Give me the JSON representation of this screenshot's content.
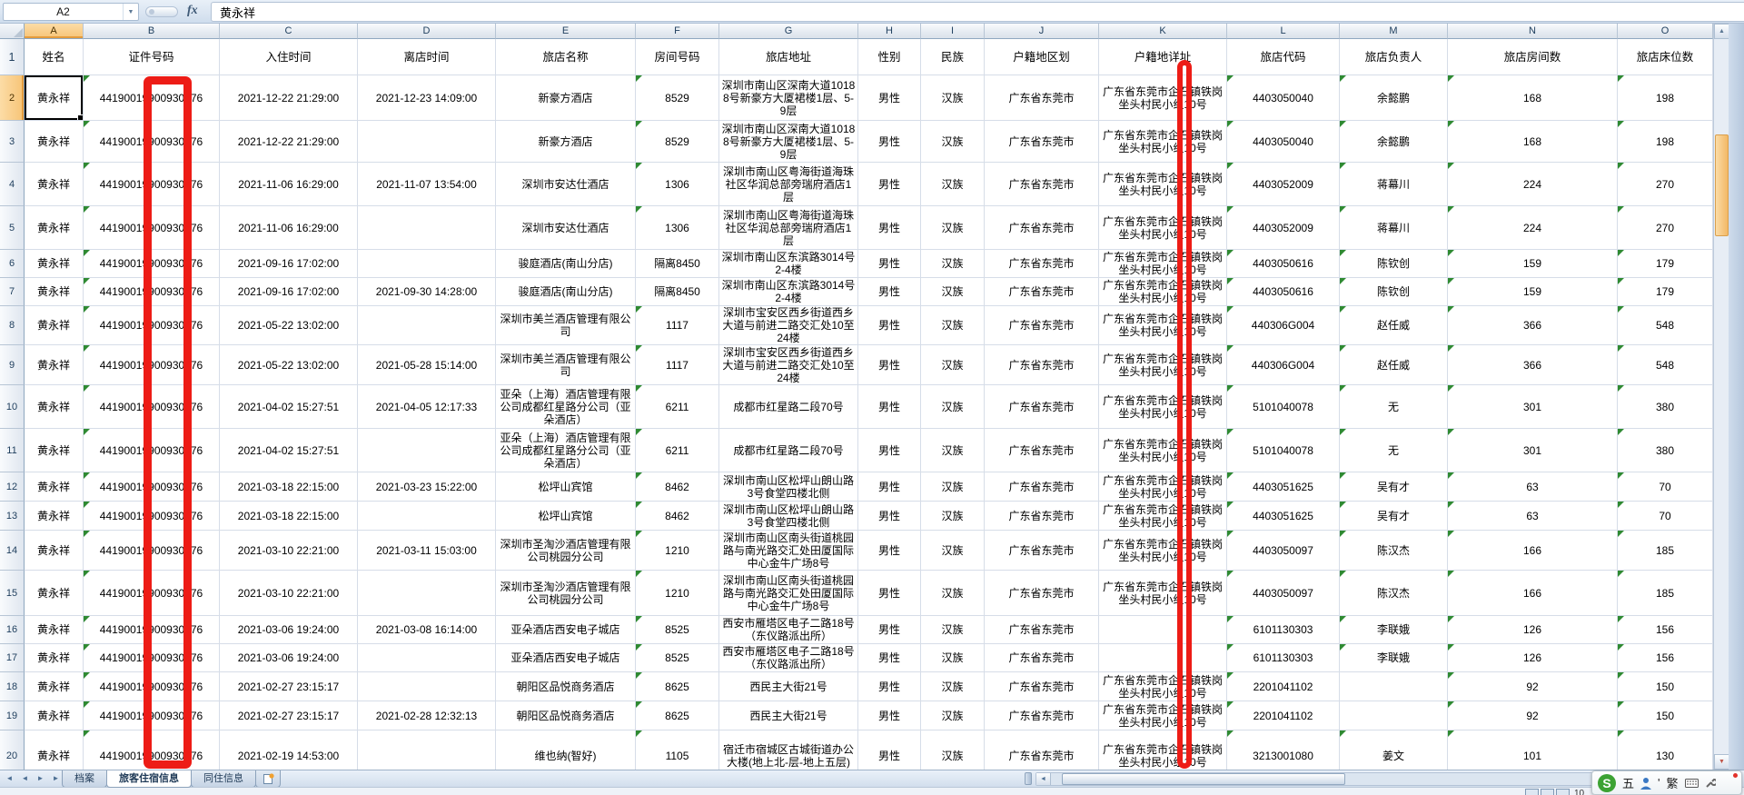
{
  "formula_bar": {
    "cell_ref": "A2",
    "fx_label": "fx",
    "value": "黄永祥"
  },
  "header_row": {
    "number": "1"
  },
  "columns": [
    {
      "letter": "A",
      "label": "姓名"
    },
    {
      "letter": "B",
      "label": "证件号码"
    },
    {
      "letter": "C",
      "label": "入住时间"
    },
    {
      "letter": "D",
      "label": "离店时间"
    },
    {
      "letter": "E",
      "label": "旅店名称"
    },
    {
      "letter": "F",
      "label": "房间号码"
    },
    {
      "letter": "G",
      "label": "旅店地址"
    },
    {
      "letter": "H",
      "label": "性别"
    },
    {
      "letter": "I",
      "label": "民族"
    },
    {
      "letter": "J",
      "label": "户籍地区划"
    },
    {
      "letter": "K",
      "label": "户籍地详址"
    },
    {
      "letter": "L",
      "label": "旅店代码"
    },
    {
      "letter": "M",
      "label": "旅店负责人"
    },
    {
      "letter": "N",
      "label": "旅店房间数"
    },
    {
      "letter": "O",
      "label": "旅店床位数"
    }
  ],
  "rows": [
    {
      "n": "2",
      "name": "黄永祥",
      "id": "44190019900930376",
      "checkin": "2021-12-22 21:29:00",
      "checkout": "2021-12-23 14:09:00",
      "hotel": "新豪方酒店",
      "room": "8529",
      "address": "深圳市南山区深南大道10188号新豪方大厦裙楼1层、5-9层",
      "gender": "男性",
      "ethnicity": "汉族",
      "region": "广东省东莞市",
      "home": "广东省东莞市企石镇铁岗坐头村民小组10号",
      "code": "4403050040",
      "manager": "余懿鹏",
      "rooms": "168",
      "beds": "198"
    },
    {
      "n": "3",
      "name": "黄永祥",
      "id": "44190019900930376",
      "checkin": "2021-12-22 21:29:00",
      "checkout": "",
      "hotel": "新豪方酒店",
      "room": "8529",
      "address": "深圳市南山区深南大道10188号新豪方大厦裙楼1层、5-9层",
      "gender": "男性",
      "ethnicity": "汉族",
      "region": "广东省东莞市",
      "home": "广东省东莞市企石镇铁岗坐头村民小组10号",
      "code": "4403050040",
      "manager": "余懿鹏",
      "rooms": "168",
      "beds": "198"
    },
    {
      "n": "4",
      "name": "黄永祥",
      "id": "44190019900930376",
      "checkin": "2021-11-06 16:29:00",
      "checkout": "2021-11-07 13:54:00",
      "hotel": "深圳市安达仕酒店",
      "room": "1306",
      "address": "深圳市南山区粤海街道海珠社区华润总部旁瑞府酒店1层",
      "gender": "男性",
      "ethnicity": "汉族",
      "region": "广东省东莞市",
      "home": "广东省东莞市企石镇铁岗坐头村民小组10号",
      "code": "4403052009",
      "manager": "蒋幕川",
      "rooms": "224",
      "beds": "270"
    },
    {
      "n": "5",
      "name": "黄永祥",
      "id": "44190019900930376",
      "checkin": "2021-11-06 16:29:00",
      "checkout": "",
      "hotel": "深圳市安达仕酒店",
      "room": "1306",
      "address": "深圳市南山区粤海街道海珠社区华润总部旁瑞府酒店1层",
      "gender": "男性",
      "ethnicity": "汉族",
      "region": "广东省东莞市",
      "home": "广东省东莞市企石镇铁岗坐头村民小组10号",
      "code": "4403052009",
      "manager": "蒋幕川",
      "rooms": "224",
      "beds": "270"
    },
    {
      "n": "6",
      "name": "黄永祥",
      "id": "44190019900930376",
      "checkin": "2021-09-16 17:02:00",
      "checkout": "",
      "hotel": "骏庭酒店(南山分店)",
      "room": "隔离8450",
      "address": "深圳市南山区东滨路3014号2-4楼",
      "gender": "男性",
      "ethnicity": "汉族",
      "region": "广东省东莞市",
      "home": "广东省东莞市企石镇铁岗坐头村民小组10号",
      "code": "4403050616",
      "manager": "陈钦创",
      "rooms": "159",
      "beds": "179"
    },
    {
      "n": "7",
      "name": "黄永祥",
      "id": "44190019900930376",
      "checkin": "2021-09-16 17:02:00",
      "checkout": "2021-09-30 14:28:00",
      "hotel": "骏庭酒店(南山分店)",
      "room": "隔离8450",
      "address": "深圳市南山区东滨路3014号2-4楼",
      "gender": "男性",
      "ethnicity": "汉族",
      "region": "广东省东莞市",
      "home": "广东省东莞市企石镇铁岗坐头村民小组10号",
      "code": "4403050616",
      "manager": "陈钦创",
      "rooms": "159",
      "beds": "179"
    },
    {
      "n": "8",
      "name": "黄永祥",
      "id": "44190019900930376",
      "checkin": "2021-05-22 13:02:00",
      "checkout": "",
      "hotel": "深圳市美兰酒店管理有限公司",
      "room": "1117",
      "address": "深圳市宝安区西乡街道西乡大道与前进二路交汇处10至24楼",
      "gender": "男性",
      "ethnicity": "汉族",
      "region": "广东省东莞市",
      "home": "广东省东莞市企石镇铁岗坐头村民小组10号",
      "code": "440306G004",
      "manager": "赵任威",
      "rooms": "366",
      "beds": "548"
    },
    {
      "n": "9",
      "name": "黄永祥",
      "id": "44190019900930376",
      "checkin": "2021-05-22 13:02:00",
      "checkout": "2021-05-28 15:14:00",
      "hotel": "深圳市美兰酒店管理有限公司",
      "room": "1117",
      "address": "深圳市宝安区西乡街道西乡大道与前进二路交汇处10至24楼",
      "gender": "男性",
      "ethnicity": "汉族",
      "region": "广东省东莞市",
      "home": "广东省东莞市企石镇铁岗坐头村民小组10号",
      "code": "440306G004",
      "manager": "赵任威",
      "rooms": "366",
      "beds": "548"
    },
    {
      "n": "10",
      "name": "黄永祥",
      "id": "44190019900930376",
      "checkin": "2021-04-02 15:27:51",
      "checkout": "2021-04-05 12:17:33",
      "hotel": "亚朵（上海）酒店管理有限公司成都红星路分公司（亚朵酒店）",
      "room": "6211",
      "address": "成都市红星路二段70号",
      "gender": "男性",
      "ethnicity": "汉族",
      "region": "广东省东莞市",
      "home": "广东省东莞市企石镇铁岗坐头村民小组10号",
      "code": "5101040078",
      "manager": "无",
      "rooms": "301",
      "beds": "380"
    },
    {
      "n": "11",
      "name": "黄永祥",
      "id": "44190019900930376",
      "checkin": "2021-04-02 15:27:51",
      "checkout": "",
      "hotel": "亚朵（上海）酒店管理有限公司成都红星路分公司（亚朵酒店）",
      "room": "6211",
      "address": "成都市红星路二段70号",
      "gender": "男性",
      "ethnicity": "汉族",
      "region": "广东省东莞市",
      "home": "广东省东莞市企石镇铁岗坐头村民小组10号",
      "code": "5101040078",
      "manager": "无",
      "rooms": "301",
      "beds": "380"
    },
    {
      "n": "12",
      "name": "黄永祥",
      "id": "44190019900930376",
      "checkin": "2021-03-18 22:15:00",
      "checkout": "2021-03-23 15:22:00",
      "hotel": "松坪山宾馆",
      "room": "8462",
      "address": "深圳市南山区松坪山朗山路3号食堂四楼北侧",
      "gender": "男性",
      "ethnicity": "汉族",
      "region": "广东省东莞市",
      "home": "广东省东莞市企石镇铁岗坐头村民小组10号",
      "code": "4403051625",
      "manager": "吴有才",
      "rooms": "63",
      "beds": "70"
    },
    {
      "n": "13",
      "name": "黄永祥",
      "id": "44190019900930376",
      "checkin": "2021-03-18 22:15:00",
      "checkout": "",
      "hotel": "松坪山宾馆",
      "room": "8462",
      "address": "深圳市南山区松坪山朗山路3号食堂四楼北侧",
      "gender": "男性",
      "ethnicity": "汉族",
      "region": "广东省东莞市",
      "home": "广东省东莞市企石镇铁岗坐头村民小组10号",
      "code": "4403051625",
      "manager": "吴有才",
      "rooms": "63",
      "beds": "70"
    },
    {
      "n": "14",
      "name": "黄永祥",
      "id": "44190019900930376",
      "checkin": "2021-03-10 22:21:00",
      "checkout": "2021-03-11 15:03:00",
      "hotel": "深圳市圣淘沙酒店管理有限公司桃园分公司",
      "room": "1210",
      "address": "深圳市南山区南头街道桃园路与南光路交汇处田厦国际中心金牛广场8号",
      "gender": "男性",
      "ethnicity": "汉族",
      "region": "广东省东莞市",
      "home": "广东省东莞市企石镇铁岗坐头村民小组10号",
      "code": "4403050097",
      "manager": "陈汉杰",
      "rooms": "166",
      "beds": "185"
    },
    {
      "n": "15",
      "name": "黄永祥",
      "id": "44190019900930376",
      "checkin": "2021-03-10 22:21:00",
      "checkout": "",
      "hotel": "深圳市圣淘沙酒店管理有限公司桃园分公司",
      "room": "1210",
      "address": "深圳市南山区南头街道桃园路与南光路交汇处田厦国际中心金牛广场8号",
      "gender": "男性",
      "ethnicity": "汉族",
      "region": "广东省东莞市",
      "home": "广东省东莞市企石镇铁岗坐头村民小组10号",
      "code": "4403050097",
      "manager": "陈汉杰",
      "rooms": "166",
      "beds": "185"
    },
    {
      "n": "16",
      "name": "黄永祥",
      "id": "44190019900930376",
      "checkin": "2021-03-06 19:24:00",
      "checkout": "2021-03-08 16:14:00",
      "hotel": "亚朵酒店西安电子城店",
      "room": "8525",
      "address": "西安市雁塔区电子二路18号（东仪路派出所）",
      "gender": "男性",
      "ethnicity": "汉族",
      "region": "广东省东莞市",
      "home": "",
      "code": "6101130303",
      "manager": "李联娥",
      "rooms": "126",
      "beds": "156"
    },
    {
      "n": "17",
      "name": "黄永祥",
      "id": "44190019900930376",
      "checkin": "2021-03-06 19:24:00",
      "checkout": "",
      "hotel": "亚朵酒店西安电子城店",
      "room": "8525",
      "address": "西安市雁塔区电子二路18号（东仪路派出所）",
      "gender": "男性",
      "ethnicity": "汉族",
      "region": "广东省东莞市",
      "home": "",
      "code": "6101130303",
      "manager": "李联娥",
      "rooms": "126",
      "beds": "156"
    },
    {
      "n": "18",
      "name": "黄永祥",
      "id": "44190019900930376",
      "checkin": "2021-02-27 23:15:17",
      "checkout": "",
      "hotel": "朝阳区品悦商务酒店",
      "room": "8625",
      "address": "西民主大街21号",
      "gender": "男性",
      "ethnicity": "汉族",
      "region": "广东省东莞市",
      "home": "广东省东莞市企石镇铁岗坐头村民小组10号",
      "code": "2201041102",
      "manager": "",
      "rooms": "92",
      "beds": "150"
    },
    {
      "n": "19",
      "name": "黄永祥",
      "id": "44190019900930376",
      "checkin": "2021-02-27 23:15:17",
      "checkout": "2021-02-28 12:32:13",
      "hotel": "朝阳区品悦商务酒店",
      "room": "8625",
      "address": "西民主大街21号",
      "gender": "男性",
      "ethnicity": "汉族",
      "region": "广东省东莞市",
      "home": "广东省东莞市企石镇铁岗坐头村民小组10号",
      "code": "2201041102",
      "manager": "",
      "rooms": "92",
      "beds": "150"
    },
    {
      "n": "20",
      "name": "黄永祥",
      "id": "44190019900930376",
      "checkin": "2021-02-19 14:53:00",
      "checkout": "",
      "hotel": "维也纳(智好)",
      "room": "1105",
      "address": "宿迁市宿城区古城街道办公大楼(地上北-层-地上五层)",
      "gender": "男性",
      "ethnicity": "汉族",
      "region": "广东省东莞市",
      "home": "广东省东莞市企石镇铁岗坐头村民小组10号",
      "code": "3213001080",
      "manager": "姜文",
      "rooms": "101",
      "beds": "130"
    }
  ],
  "sheet_tabs": {
    "items": [
      "档案",
      "旅客住宿信息",
      "同住信息"
    ],
    "active": "旅客住宿信息"
  },
  "scroll": {
    "nav_first": "◄",
    "nav_prev": "◄",
    "nav_next": "►",
    "nav_last": "►",
    "up": "▲",
    "down": "▼",
    "left": "◄",
    "right": "►"
  },
  "status": {
    "zoom_text": "10"
  },
  "ime": {
    "logo": "S",
    "mode": "五",
    "punct": "'",
    "trad": "繁"
  },
  "annotations": {
    "redaction_color": "#ed1c16",
    "redacted_areas": [
      "证件号码列中段数字",
      "户籍地详址列中段文字"
    ]
  },
  "colors": {
    "selection_header": "#f7c476",
    "error_triangle": "#2f8a32",
    "grid_line": "#d6dde8"
  }
}
